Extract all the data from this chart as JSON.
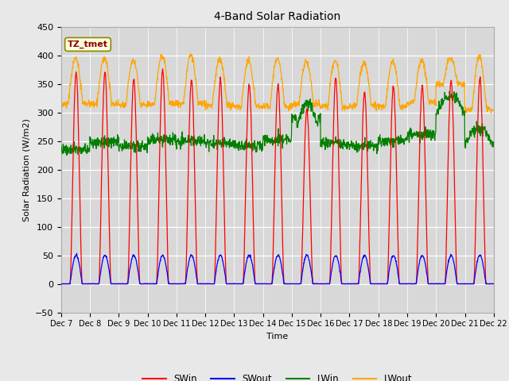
{
  "title": "4-Band Solar Radiation",
  "ylabel": "Solar Radiation (W/m2)",
  "xlabel": "Time",
  "annotation": "TZ_tmet",
  "ylim": [
    -50,
    450
  ],
  "bg_color": "#e8e8e8",
  "plot_bg_color": "#d8d8d8",
  "grid_color": "white",
  "legend_entries": [
    "SWin",
    "SWout",
    "LWin",
    "LWout"
  ],
  "legend_colors": [
    "red",
    "blue",
    "green",
    "orange"
  ],
  "x_tick_labels": [
    "Dec 7",
    "Dec 8",
    "Dec 9",
    "Dec 10",
    "Dec 11",
    "Dec 12",
    "Dec 13",
    "Dec 14",
    "Dec 15",
    "Dec 16",
    "Dec 17",
    "Dec 18",
    "Dec 19",
    "Dec 20",
    "Dec 21",
    "Dec 22"
  ],
  "n_days": 15,
  "dt_hours": 0.25,
  "sw_peaks": [
    370,
    370,
    358,
    375,
    358,
    357,
    350,
    350,
    305,
    360,
    335,
    345,
    345,
    355,
    360
  ],
  "lwin_base": [
    235,
    248,
    240,
    252,
    250,
    246,
    242,
    252,
    288,
    246,
    242,
    250,
    262,
    298,
    243
  ],
  "lwout_day_peaks": [
    395,
    395,
    392,
    400,
    400,
    395,
    390,
    395,
    390,
    390,
    388,
    390,
    393,
    395,
    398
  ],
  "lwout_day_mins": [
    315,
    315,
    312,
    315,
    316,
    312,
    310,
    310,
    315,
    310,
    312,
    310,
    318,
    350,
    305
  ]
}
